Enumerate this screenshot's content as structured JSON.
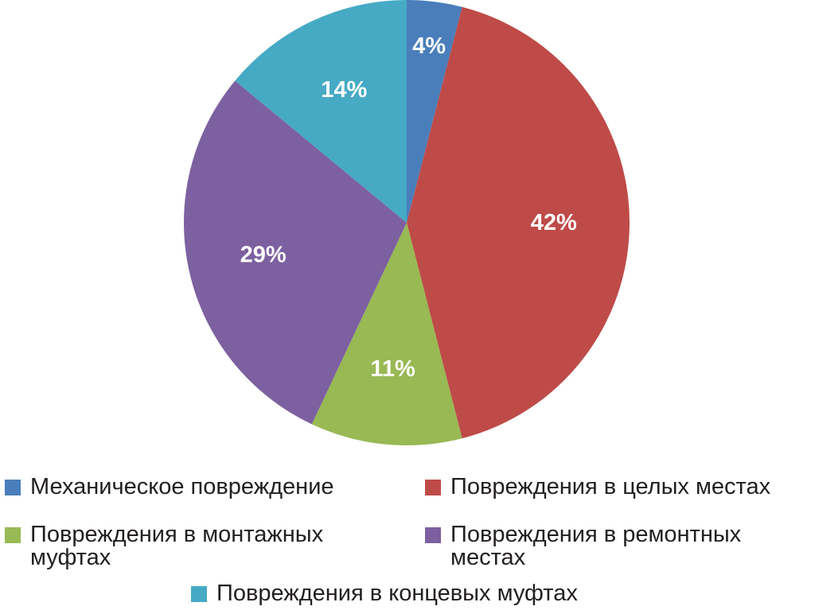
{
  "chart_data": {
    "type": "pie",
    "title": "",
    "categories": [
      "Механическое повреждение",
      "Повреждения в целых местах",
      "Повреждения в монтажных муфтах",
      "Повреждения в ремонтных местах",
      "Повреждения в концевых муфтах"
    ],
    "values": [
      4,
      42,
      11,
      29,
      14
    ],
    "data_labels": [
      "4%",
      "42%",
      "11%",
      "29%",
      "14%"
    ],
    "colors": [
      "#4a7ebb",
      "#be4b48",
      "#98b954",
      "#7d60a0",
      "#46aac5"
    ],
    "legend": {
      "placement": "bottom",
      "items": [
        {
          "label": "Механическое повреждение",
          "color": "#4a7ebb"
        },
        {
          "label": "Повреждения в целых местах",
          "color": "#be4b48"
        },
        {
          "label": "Повреждения в монтажных муфтах",
          "color": "#98b954"
        },
        {
          "label": "Повреждения в ремонтных местах",
          "color": "#7d60a0"
        },
        {
          "label": "Повреждения в концевых муфтах",
          "color": "#46aac5"
        }
      ]
    },
    "start_angle_deg": 0,
    "direction": "clockwise"
  }
}
